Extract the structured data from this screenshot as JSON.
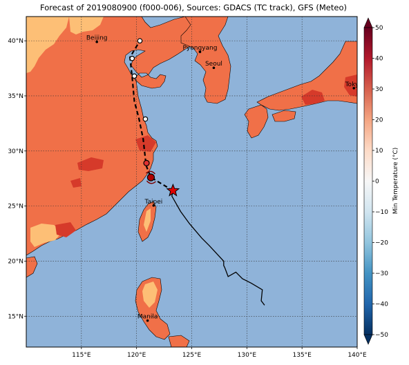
{
  "title": "Forecast of 2019080900 (f000-006), Sources: GDACS (TC track), GFS (Meteo)",
  "map": {
    "lon_range": [
      110,
      140
    ],
    "lat_range": [
      12.2,
      42.2
    ],
    "lon_ticks": [
      "115°E",
      "120°E",
      "125°E",
      "130°E",
      "135°E",
      "140°E"
    ],
    "lat_ticks": [
      "15°N",
      "20°N",
      "25°N",
      "30°N",
      "35°N",
      "40°N"
    ],
    "ocean_color": "#8fb3d9",
    "land_colors": [
      "#f07048",
      "#fdbf76",
      "#d63a2a",
      "#b8192a"
    ],
    "gridlines": true
  },
  "cities": [
    {
      "name": "Beijing",
      "lon": 116.4,
      "lat": 39.9
    },
    {
      "name": "Pyongyang",
      "lon": 125.75,
      "lat": 39.0
    },
    {
      "name": "Seoul",
      "lon": 127.0,
      "lat": 37.55
    },
    {
      "name": "Tokyo",
      "lon": 139.7,
      "lat": 35.7
    },
    {
      "name": "Taipei",
      "lon": 121.55,
      "lat": 25.05
    },
    {
      "name": "Manila",
      "lon": 121.0,
      "lat": 14.6
    }
  ],
  "track": {
    "past": [
      [
        131.6,
        16.0
      ],
      [
        131.3,
        16.4
      ],
      [
        131.4,
        17.4
      ],
      [
        130.4,
        18.0
      ],
      [
        129.6,
        18.4
      ],
      [
        129.0,
        19.0
      ],
      [
        128.3,
        18.6
      ],
      [
        128.0,
        19.4
      ],
      [
        127.9,
        19.6
      ],
      [
        127.9,
        20.0
      ],
      [
        126.6,
        21.4
      ],
      [
        125.9,
        22.1
      ],
      [
        124.8,
        23.4
      ],
      [
        124.0,
        24.5
      ],
      [
        123.2,
        25.9
      ],
      [
        123.3,
        26.4
      ]
    ],
    "current": [
      123.3,
      26.4
    ],
    "forecast": [
      [
        123.3,
        26.4
      ],
      [
        121.3,
        27.6
      ],
      [
        120.9,
        28.6
      ],
      [
        120.8,
        29.3
      ],
      [
        120.6,
        31.1
      ],
      [
        120.2,
        33.0
      ],
      [
        119.8,
        34.5
      ],
      [
        119.6,
        36.7
      ],
      [
        119.4,
        38.5
      ],
      [
        120.3,
        40.0
      ]
    ],
    "forecast_points": [
      {
        "lon": 121.3,
        "lat": 27.6,
        "color": "#b00000",
        "size": "large"
      },
      {
        "lon": 120.9,
        "lat": 28.9,
        "color": "#e03030",
        "size": "medium"
      },
      {
        "lon": 120.8,
        "lat": 32.9,
        "color": "#ffffff",
        "size": "small"
      },
      {
        "lon": 119.8,
        "lat": 36.8,
        "color": "#ffffff",
        "size": "small"
      },
      {
        "lon": 119.6,
        "lat": 38.4,
        "color": "#ffffff",
        "size": "small"
      },
      {
        "lon": 120.3,
        "lat": 40.0,
        "color": "#ffffff",
        "size": "small"
      }
    ]
  },
  "colorbar": {
    "label": "Min Temperature (°C)",
    "ticks": [
      "50",
      "40",
      "30",
      "20",
      "10",
      "0",
      "−10",
      "−20",
      "−30",
      "−40",
      "−50"
    ],
    "colors": [
      "#67001f",
      "#b2182b",
      "#d6604d",
      "#f4a582",
      "#fddbc7",
      "#f7f7f7",
      "#d1e5f0",
      "#92c5de",
      "#4393c3",
      "#2166ac",
      "#053061"
    ]
  }
}
